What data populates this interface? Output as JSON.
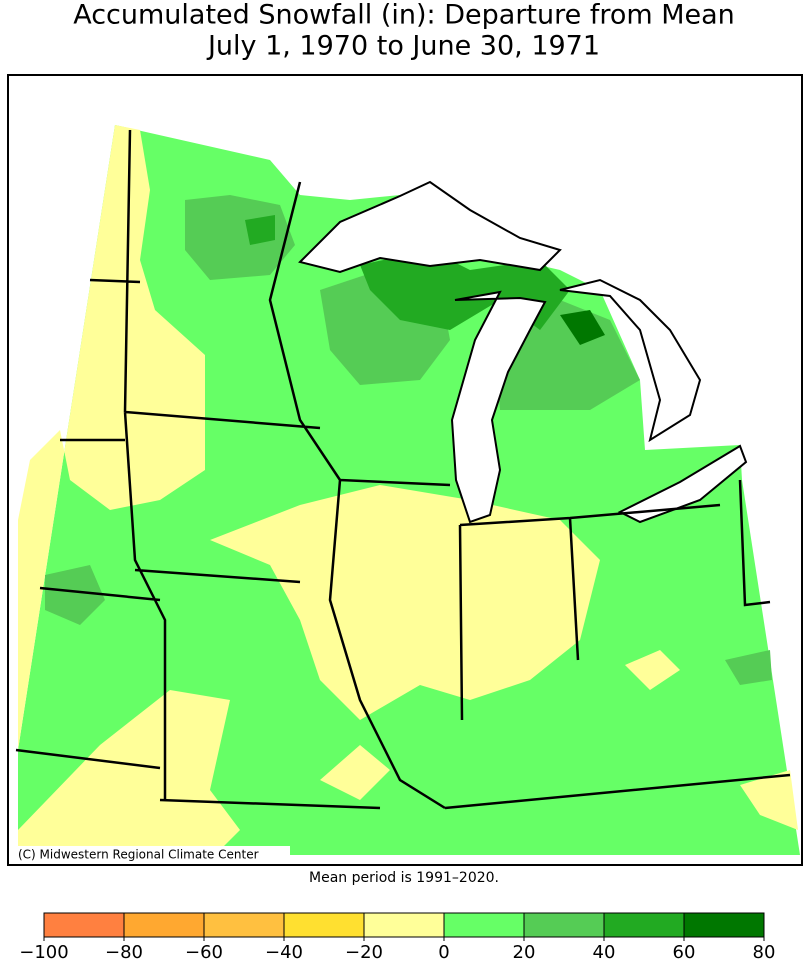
{
  "header": {
    "title": "Accumulated Snowfall (in): Departure from Mean",
    "subtitle": "July 1, 1970 to June 30, 1971"
  },
  "map": {
    "credit": "(C) Midwestern Regional Climate Center",
    "note": "Mean period is 1991–2020."
  },
  "legend": {
    "ticks": [
      {
        "value": -100,
        "label": "−100"
      },
      {
        "value": -80,
        "label": "−80"
      },
      {
        "value": -60,
        "label": "−60"
      },
      {
        "value": -40,
        "label": "−40"
      },
      {
        "value": -20,
        "label": "−20"
      },
      0,
      20,
      40,
      60,
      80
    ],
    "colors": [
      "#ff8040",
      "#ffa830",
      "#ffc040",
      "#ffe030",
      "#ffff99",
      "#66ff66",
      "#55cc55",
      "#22aa22",
      "#007700"
    ]
  }
}
